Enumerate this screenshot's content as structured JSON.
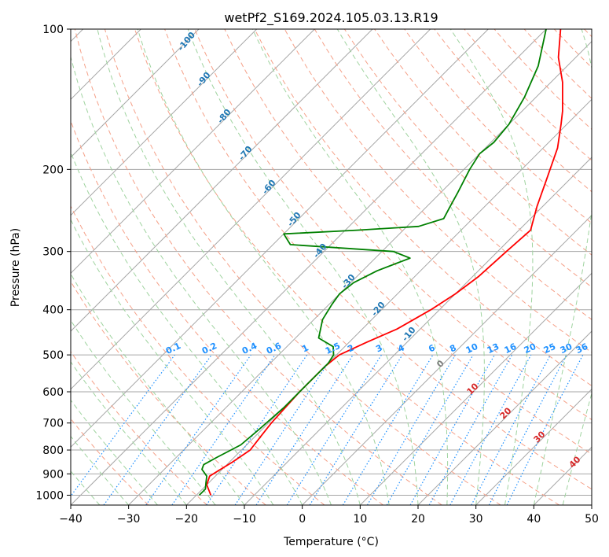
{
  "chart_data": {
    "type": "line",
    "title": "wetPf2_S169.2024.105.03.13.R19",
    "xlabel": "Temperature (°C)",
    "ylabel": "Pressure (hPa)",
    "xlim": [
      -40,
      50
    ],
    "ylim": [
      1050,
      100
    ],
    "y_scale": "log",
    "grid": true,
    "x_ticks": [
      -40,
      -30,
      -20,
      -10,
      0,
      10,
      20,
      30,
      40,
      50
    ],
    "y_ticks": [
      100,
      200,
      300,
      400,
      500,
      600,
      700,
      800,
      900,
      1000
    ],
    "skew": true,
    "series": [
      {
        "color": "#ff0000",
        "points": [
          {
            "p": 1000,
            "t": -17.5
          },
          {
            "p": 950,
            "t": -20.0
          },
          {
            "p": 910,
            "t": -21.0
          },
          {
            "p": 880,
            "t": -20.3
          },
          {
            "p": 850,
            "t": -19.5
          },
          {
            "p": 800,
            "t": -18.5
          },
          {
            "p": 750,
            "t": -19.0
          },
          {
            "p": 700,
            "t": -19.5
          },
          {
            "p": 600,
            "t": -20.0
          },
          {
            "p": 530,
            "t": -20.0
          },
          {
            "p": 500,
            "t": -19.5
          },
          {
            "p": 470,
            "t": -17.0
          },
          {
            "p": 440,
            "t": -14.0
          },
          {
            "p": 400,
            "t": -11.5
          },
          {
            "p": 370,
            "t": -10.0
          },
          {
            "p": 340,
            "t": -9.0
          },
          {
            "p": 300,
            "t": -8.5
          },
          {
            "p": 270,
            "t": -8.0
          },
          {
            "p": 240,
            "t": -11.0
          },
          {
            "p": 210,
            "t": -14.0
          },
          {
            "p": 180,
            "t": -17.5
          },
          {
            "p": 160,
            "t": -21.0
          },
          {
            "p": 150,
            "t": -23.0
          },
          {
            "p": 130,
            "t": -28.0
          },
          {
            "p": 115,
            "t": -33.0
          },
          {
            "p": 100,
            "t": -37.5
          }
        ]
      },
      {
        "color": "#008000",
        "points": [
          {
            "p": 1000,
            "t": -19.5
          },
          {
            "p": 970,
            "t": -19.5
          },
          {
            "p": 940,
            "t": -20.5
          },
          {
            "p": 910,
            "t": -21.5
          },
          {
            "p": 880,
            "t": -23.5
          },
          {
            "p": 860,
            "t": -24.0
          },
          {
            "p": 830,
            "t": -23.0
          },
          {
            "p": 780,
            "t": -21.0
          },
          {
            "p": 720,
            "t": -20.5
          },
          {
            "p": 650,
            "t": -20.0
          },
          {
            "p": 580,
            "t": -20.0
          },
          {
            "p": 520,
            "t": -20.0
          },
          {
            "p": 500,
            "t": -20.5
          },
          {
            "p": 480,
            "t": -22.0
          },
          {
            "p": 460,
            "t": -26.0
          },
          {
            "p": 420,
            "t": -28.5
          },
          {
            "p": 390,
            "t": -29.5
          },
          {
            "p": 370,
            "t": -30.0
          },
          {
            "p": 350,
            "t": -29.5
          },
          {
            "p": 330,
            "t": -27.5
          },
          {
            "p": 310,
            "t": -24.0
          },
          {
            "p": 300,
            "t": -28.0
          },
          {
            "p": 290,
            "t": -47.0
          },
          {
            "p": 275,
            "t": -50.0
          },
          {
            "p": 270,
            "t": -38.0
          },
          {
            "p": 265,
            "t": -28.0
          },
          {
            "p": 255,
            "t": -25.0
          },
          {
            "p": 240,
            "t": -26.0
          },
          {
            "p": 225,
            "t": -27.0
          },
          {
            "p": 200,
            "t": -29.0
          },
          {
            "p": 185,
            "t": -30.0
          },
          {
            "p": 175,
            "t": -29.5
          },
          {
            "p": 160,
            "t": -30.0
          },
          {
            "p": 140,
            "t": -32.0
          },
          {
            "p": 120,
            "t": -35.0
          },
          {
            "p": 100,
            "t": -40.0
          }
        ]
      }
    ],
    "dry_adiabat_labels": [
      "-100",
      "-90",
      "-80",
      "-70",
      "-60",
      "-50",
      "-40",
      "-30",
      "-20",
      "-10"
    ],
    "mixing_ratio_labels": [
      "0.1",
      "0.2",
      "0.4",
      "0.6",
      "1",
      "1.5",
      "2",
      "3",
      "4",
      "6",
      "8",
      "10",
      "13",
      "16",
      "20",
      "25",
      "30",
      "36"
    ],
    "moist_adiabat_labels": [
      "0",
      "10",
      "20",
      "30",
      "40"
    ],
    "colors": {
      "temperature": "#ff0000",
      "dewpoint": "#008000",
      "isotherm": "#a6a6a6",
      "dry_adiabat": "#f5a088",
      "moist_adiabat": "#9fd39f",
      "mixing_ratio": "#1e90ff",
      "dry_label": "#1f77b4",
      "mixing_label": "#1e90ff",
      "moist_label": "#d62728",
      "zero_label": "#808080"
    }
  }
}
